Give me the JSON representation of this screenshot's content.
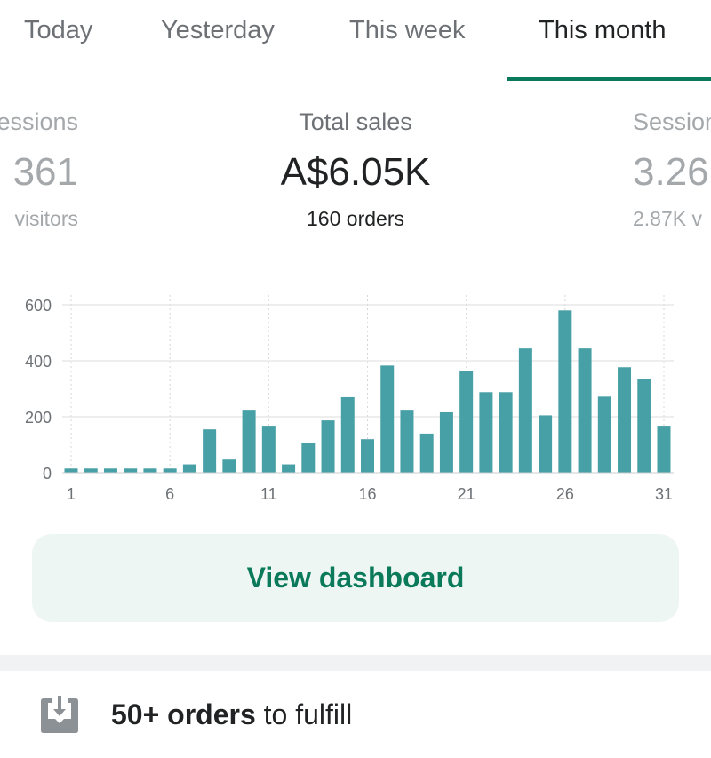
{
  "tabs": [
    {
      "label": "Today"
    },
    {
      "label": "Yesterday"
    },
    {
      "label": "This week"
    },
    {
      "label": "This month",
      "active": true
    }
  ],
  "stats": {
    "left": {
      "label": "Sessions",
      "value": "361",
      "sub": "visitors"
    },
    "center": {
      "label": "Total sales",
      "value": "A$6.05K",
      "sub": "160 orders"
    },
    "right": {
      "label": "Sessions",
      "value": "3.26",
      "sub": "2.87K v"
    }
  },
  "chart_data": {
    "type": "bar",
    "title": "",
    "xlabel": "",
    "ylabel": "",
    "x": [
      1,
      2,
      3,
      4,
      5,
      6,
      7,
      8,
      9,
      10,
      11,
      12,
      13,
      14,
      15,
      16,
      17,
      18,
      19,
      20,
      21,
      22,
      23,
      24,
      25,
      26,
      27,
      28,
      29,
      30,
      31
    ],
    "values": [
      15,
      15,
      15,
      15,
      15,
      15,
      30,
      155,
      47,
      225,
      168,
      30,
      108,
      187,
      270,
      120,
      383,
      225,
      140,
      216,
      365,
      288,
      288,
      444,
      205,
      580,
      444,
      272,
      377,
      336,
      168
    ],
    "ylim": [
      0,
      600
    ],
    "yticks": [
      "0",
      "200",
      "400",
      "600"
    ],
    "xticks": [
      "1",
      "6",
      "11",
      "16",
      "21",
      "26",
      "31"
    ],
    "grid": true,
    "bar_color": "#47a0a6"
  },
  "button": {
    "label": "View dashboard"
  },
  "fulfill": {
    "bold": "50+ orders",
    "rest": " to fulfill",
    "icon": "inbox-download-icon"
  },
  "colors": {
    "accent": "#0b7a5c"
  }
}
